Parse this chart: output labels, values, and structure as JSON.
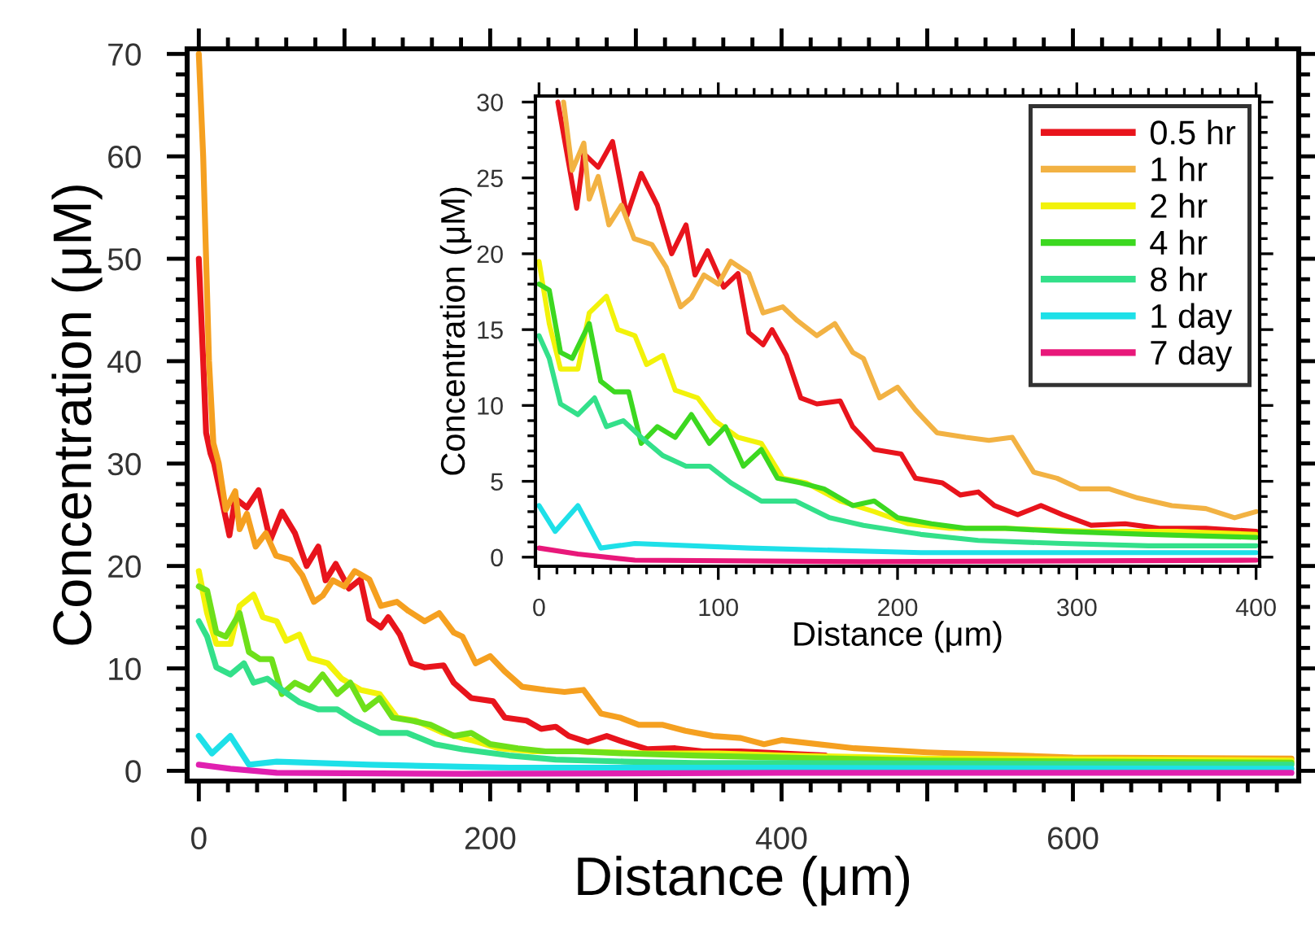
{
  "chart_data": [
    {
      "type": "line",
      "xlabel": "Distance (μm)",
      "ylabel": "Concentration (μM)",
      "xlim": [
        -8,
        755
      ],
      "ylim": [
        -1,
        70.5
      ],
      "xticks": [
        0,
        {
          "value": 100,
          "label": null
        },
        200,
        {
          "value": 300,
          "label": null
        },
        400,
        {
          "value": 500,
          "label": null
        },
        600,
        {
          "value": 700,
          "label": null
        }
      ],
      "yticks": [
        0,
        10,
        20,
        30,
        40,
        50,
        60,
        70
      ],
      "grid": false,
      "line_style": "solid",
      "marker": "none",
      "series": [
        {
          "color": "#e8141c",
          "x": [
            0,
            3,
            5,
            8,
            10.5,
            21,
            25,
            33,
            41,
            49,
            57,
            66,
            74,
            82,
            87,
            94,
            103,
            111,
            117,
            125,
            130,
            138,
            146,
            155,
            168,
            175,
            187,
            202,
            210,
            225,
            235,
            245,
            254,
            267,
            280,
            292,
            308,
            327,
            346,
            372,
            400,
            430
          ],
          "values": [
            50,
            40,
            33,
            31,
            30,
            23,
            26.6,
            25.7,
            27.4,
            22.5,
            25.3,
            23.2,
            20,
            21.9,
            18.6,
            20.2,
            17.8,
            18.7,
            14.8,
            14,
            15,
            13.3,
            10.5,
            10.1,
            10.3,
            8.6,
            7.1,
            6.8,
            5.2,
            4.9,
            4.1,
            4.3,
            3.4,
            2.8,
            3.4,
            2.8,
            2.1,
            2.2,
            1.9,
            1.9,
            1.7,
            1.5
          ]
        },
        {
          "color": "#f5a020",
          "x": [
            0,
            3,
            7,
            10,
            13.7,
            18.5,
            25,
            28,
            33,
            39,
            46,
            53,
            63,
            71,
            79,
            85,
            92,
            100,
            107,
            117,
            125,
            136,
            144,
            155,
            165,
            175,
            181,
            190,
            200,
            210,
            222,
            238,
            251,
            264,
            276,
            289,
            302,
            318,
            334,
            353,
            372,
            388,
            400,
            450,
            500,
            600,
            750
          ],
          "values": [
            70,
            60,
            40,
            32,
            30,
            25.5,
            27.3,
            23.6,
            25.1,
            21.9,
            23.2,
            21,
            20.6,
            19.1,
            16.5,
            17.1,
            18.6,
            18,
            19.5,
            18.7,
            16.1,
            16.5,
            15.6,
            14.6,
            15.4,
            13.5,
            13.1,
            10.5,
            11.2,
            9.7,
            8.2,
            7.9,
            7.7,
            7.9,
            5.6,
            5.2,
            4.5,
            4.5,
            3.9,
            3.4,
            3.2,
            2.6,
            3.0,
            2.2,
            1.8,
            1.3,
            1.2
          ]
        },
        {
          "color": "#f2f20a",
          "x": [
            0,
            5.7,
            12,
            21.7,
            28,
            37.6,
            44,
            53.5,
            60,
            69,
            76,
            88.5,
            98,
            111,
            124,
            136,
            149,
            168,
            187,
            206,
            229,
            260,
            308,
            356,
            400,
            500,
            750
          ],
          "values": [
            19.5,
            15.4,
            12.4,
            12.4,
            16.1,
            17.2,
            15,
            14.6,
            12.7,
            13.3,
            11,
            10.5,
            9,
            7.9,
            7.5,
            5.2,
            4.9,
            3.7,
            3,
            2.2,
            1.9,
            1.9,
            1.7,
            1.7,
            1.5,
            1.2,
            1.0
          ]
        },
        {
          "color": "#6ee01a",
          "x": [
            0,
            5.7,
            12,
            18.5,
            28,
            34.4,
            42,
            50,
            57,
            66,
            76,
            85,
            95,
            104,
            114,
            124,
            133,
            146,
            159,
            175,
            187,
            200,
            219,
            238,
            260,
            292,
            340,
            400,
            500,
            750
          ],
          "values": [
            18,
            17.6,
            13.5,
            13.1,
            15.4,
            11.6,
            10.9,
            10.9,
            7.5,
            8.6,
            7.9,
            9.4,
            7.5,
            8.6,
            6,
            7.1,
            5.2,
            4.9,
            4.5,
            3.4,
            3.7,
            2.6,
            2.2,
            1.9,
            1.9,
            1.7,
            1.5,
            1.3,
            1.0,
            0.8
          ]
        },
        {
          "color": "#33e08a",
          "x": [
            0,
            5.7,
            12,
            21.7,
            31,
            37.6,
            47,
            57,
            69,
            82,
            95,
            107,
            124,
            143,
            162,
            181,
            213,
            245,
            292,
            340,
            400,
            750
          ],
          "values": [
            14.6,
            13.1,
            10.1,
            9.4,
            10.5,
            8.6,
            9,
            7.9,
            6.7,
            6,
            6,
            4.9,
            3.7,
            3.7,
            2.6,
            2.1,
            1.5,
            1.1,
            0.9,
            0.75,
            0.75,
            0.6
          ]
        },
        {
          "color": "#1ee0e8",
          "x": [
            0,
            9,
            21.7,
            34.4,
            53.5,
            117,
            213,
            400,
            750
          ],
          "values": [
            3.4,
            1.7,
            3.4,
            0.6,
            0.9,
            0.6,
            0.3,
            0.3,
            0.2
          ]
        },
        {
          "color": "#e020b0",
          "x": [
            0,
            21.7,
            53.5,
            181,
            400,
            750
          ],
          "values": [
            0.6,
            0.2,
            -0.2,
            -0.3,
            -0.2,
            -0.2
          ]
        }
      ]
    },
    {
      "type": "line",
      "xlabel": "Distance (μm)",
      "ylabel": "Concentration (μM)",
      "xlim": [
        -2,
        402
      ],
      "ylim": [
        -0.6,
        30.4
      ],
      "xticks": [
        0,
        100,
        200,
        300,
        400
      ],
      "yticks": [
        0,
        5,
        10,
        15,
        20,
        25,
        30
      ],
      "grid": false,
      "legend": "top right",
      "line_style": "solid",
      "marker": "none",
      "series": [
        {
          "name": "0.5 hr",
          "color": "#e8141c",
          "x": [
            10.5,
            21,
            25,
            33,
            41,
            49,
            57,
            66,
            74,
            82,
            87,
            94,
            103,
            111,
            117,
            125,
            130,
            138,
            146,
            155,
            168,
            175,
            187,
            202,
            210,
            225,
            235,
            245,
            254,
            267,
            280,
            292,
            308,
            327,
            346,
            372,
            400
          ],
          "values": [
            30,
            23,
            26.6,
            25.7,
            27.4,
            22.5,
            25.3,
            23.2,
            20,
            21.9,
            18.6,
            20.2,
            17.8,
            18.7,
            14.8,
            14,
            15,
            13.3,
            10.5,
            10.1,
            10.3,
            8.6,
            7.1,
            6.8,
            5.2,
            4.9,
            4.1,
            4.3,
            3.4,
            2.8,
            3.4,
            2.8,
            2.1,
            2.2,
            1.9,
            1.9,
            1.7
          ]
        },
        {
          "name": "1 hr",
          "color": "#f2b243",
          "x": [
            13.7,
            18.5,
            25,
            28,
            33,
            39,
            46,
            53,
            63,
            71,
            79,
            85,
            92,
            100,
            107,
            117,
            125,
            136,
            144,
            155,
            165,
            175,
            181,
            190,
            200,
            210,
            222,
            238,
            251,
            264,
            276,
            289,
            302,
            318,
            334,
            353,
            372,
            388,
            400
          ],
          "values": [
            30,
            25.5,
            27.3,
            23.6,
            25.1,
            21.9,
            23.2,
            21,
            20.6,
            19.1,
            16.5,
            17.1,
            18.6,
            18,
            19.5,
            18.7,
            16.1,
            16.5,
            15.6,
            14.6,
            15.4,
            13.5,
            13.1,
            10.5,
            11.2,
            9.7,
            8.2,
            7.9,
            7.7,
            7.9,
            5.6,
            5.2,
            4.5,
            4.5,
            3.9,
            3.4,
            3.2,
            2.6,
            3.0
          ]
        },
        {
          "name": "2 hr",
          "color": "#f2f20a",
          "x": [
            0,
            5.7,
            12,
            21.7,
            28,
            37.6,
            44,
            53.5,
            60,
            69,
            76,
            88.5,
            98,
            111,
            124,
            136,
            149,
            168,
            187,
            206,
            229,
            260,
            308,
            356,
            400
          ],
          "values": [
            19.5,
            15.4,
            12.4,
            12.4,
            16.1,
            17.2,
            15,
            14.6,
            12.7,
            13.3,
            11,
            10.5,
            9,
            7.9,
            7.5,
            5.2,
            4.9,
            3.7,
            3,
            2.2,
            1.9,
            1.9,
            1.7,
            1.7,
            1.5
          ]
        },
        {
          "name": "4 hr",
          "color": "#3cd820",
          "x": [
            0,
            5.7,
            12,
            18.5,
            28,
            34.4,
            42,
            50,
            57,
            66,
            76,
            85,
            95,
            104,
            114,
            124,
            133,
            146,
            159,
            175,
            187,
            200,
            219,
            238,
            260,
            292,
            340,
            400
          ],
          "values": [
            18,
            17.6,
            13.5,
            13.1,
            15.4,
            11.6,
            10.9,
            10.9,
            7.5,
            8.6,
            7.9,
            9.4,
            7.5,
            8.6,
            6,
            7.1,
            5.2,
            4.9,
            4.5,
            3.4,
            3.7,
            2.6,
            2.2,
            1.9,
            1.9,
            1.7,
            1.5,
            1.3
          ]
        },
        {
          "name": "8 hr",
          "color": "#33e08a",
          "x": [
            0,
            5.7,
            12,
            21.7,
            31,
            37.6,
            47,
            57,
            69,
            82,
            95,
            107,
            124,
            143,
            162,
            181,
            213,
            245,
            292,
            340,
            400
          ],
          "values": [
            14.6,
            13.1,
            10.1,
            9.4,
            10.5,
            8.6,
            9,
            7.9,
            6.7,
            6,
            6,
            4.9,
            3.7,
            3.7,
            2.6,
            2.1,
            1.5,
            1.1,
            0.9,
            0.75,
            0.75
          ]
        },
        {
          "name": "1 day",
          "color": "#1ee0e8",
          "x": [
            0,
            9,
            21.7,
            34.4,
            53.5,
            117,
            213,
            400
          ],
          "values": [
            3.4,
            1.7,
            3.4,
            0.6,
            0.9,
            0.6,
            0.3,
            0.3
          ]
        },
        {
          "name": "7 day",
          "color": "#e8187a",
          "x": [
            0,
            21.7,
            53.5,
            181,
            400
          ],
          "values": [
            0.6,
            0.2,
            -0.2,
            -0.3,
            -0.2
          ]
        }
      ]
    }
  ]
}
